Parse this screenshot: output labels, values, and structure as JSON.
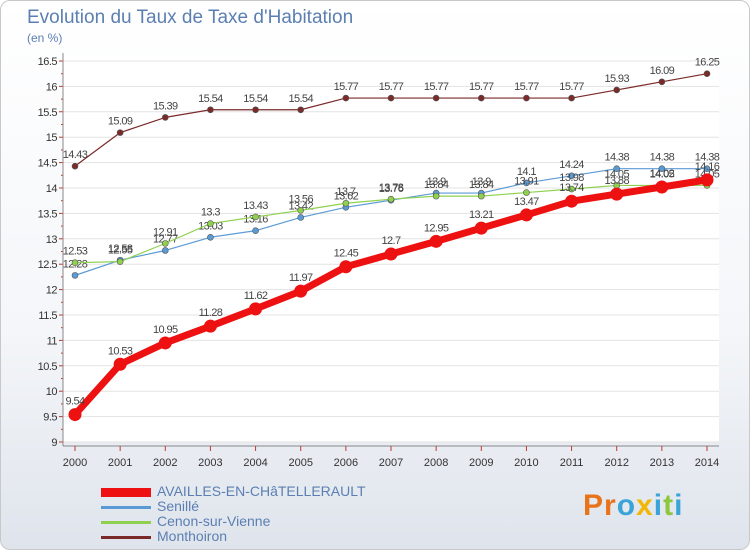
{
  "title": "Evolution du Taux de Taxe d'Habitation",
  "subtitle": "(en %)",
  "logo": {
    "text": "Proxiti",
    "colors": [
      "#e8731a",
      "#e8731a",
      "#3aa3d8",
      "#f2b705",
      "#3aa3d8",
      "#8dc63f",
      "#3aa3d8"
    ]
  },
  "chart_data": {
    "type": "line",
    "ylim": [
      9,
      16.5
    ],
    "yticks": [
      "9",
      "9.5",
      "10",
      "10.5",
      "11",
      "11.5",
      "12",
      "12.5",
      "13",
      "13.5",
      "14",
      "14.5",
      "15",
      "15.5",
      "16",
      "16.5"
    ],
    "x": [
      "2000",
      "2001",
      "2002",
      "2003",
      "2004",
      "2005",
      "2006",
      "2007",
      "2008",
      "2009",
      "2010",
      "2011",
      "2012",
      "2013",
      "2014"
    ],
    "series": [
      {
        "name": "Monthoiron",
        "color": "#7b2a2a",
        "values": [
          14.43,
          15.09,
          15.39,
          15.54,
          15.54,
          15.54,
          15.77,
          15.77,
          15.77,
          15.77,
          15.77,
          15.77,
          15.93,
          16.09,
          16.25
        ],
        "labels": [
          "14.43",
          "15.09",
          "15.39",
          "15.54",
          "15.54",
          "15.54",
          "15.77",
          "15.77",
          "15.77",
          "15.77",
          "15.77",
          "15.77",
          "15.93",
          "16.09",
          "16.25"
        ]
      },
      {
        "name": "Senillé",
        "color": "#5b9bd5",
        "values": [
          12.28,
          12.58,
          12.77,
          13.03,
          13.16,
          13.42,
          13.62,
          13.76,
          13.9,
          13.9,
          14.1,
          14.24,
          14.38,
          14.38,
          14.38
        ],
        "labels": [
          "12.28",
          "12.58",
          "12.77",
          "13.03",
          "13.16",
          "13.42",
          "13.62",
          "13.76",
          "13.9",
          "13.9",
          "14.1",
          "14.24",
          "14.38",
          "14.38",
          "14.38"
        ]
      },
      {
        "name": "Cenon-sur-Vienne",
        "color": "#8fd14f",
        "values": [
          12.53,
          12.55,
          12.91,
          13.3,
          13.43,
          13.56,
          13.7,
          13.78,
          13.84,
          13.84,
          13.91,
          13.98,
          14.05,
          14.05,
          14.05
        ],
        "labels": [
          "12.53",
          "12.55",
          "12.91",
          "13.3",
          "13.43",
          "13.56",
          "13.7",
          "13.78",
          "13.84",
          "13.84",
          "13.91",
          "13.98",
          "14.05",
          "14.05",
          "14.05"
        ]
      },
      {
        "name": "AVAILLES-EN-CHâTELLERAULT",
        "color": "#ee1111",
        "values": [
          9.54,
          10.53,
          10.95,
          11.28,
          11.62,
          11.97,
          12.45,
          12.7,
          12.95,
          13.21,
          13.47,
          13.74,
          13.88,
          14.02,
          14.16
        ],
        "labels": [
          "9.54",
          "10.53",
          "10.95",
          "11.28",
          "11.62",
          "11.97",
          "12.45",
          "12.7",
          "12.95",
          "13.21",
          "13.47",
          "13.74",
          "13.88",
          "14.02",
          "14.16"
        ]
      }
    ]
  },
  "legend": [
    {
      "label": "AVAILLES-EN-CHâTELLERAULT",
      "color": "#ee1111"
    },
    {
      "label": "Senillé",
      "color": "#5b9bd5"
    },
    {
      "label": "Cenon-sur-Vienne",
      "color": "#8fd14f"
    },
    {
      "label": "Monthoiron",
      "color": "#7b2a2a"
    }
  ]
}
